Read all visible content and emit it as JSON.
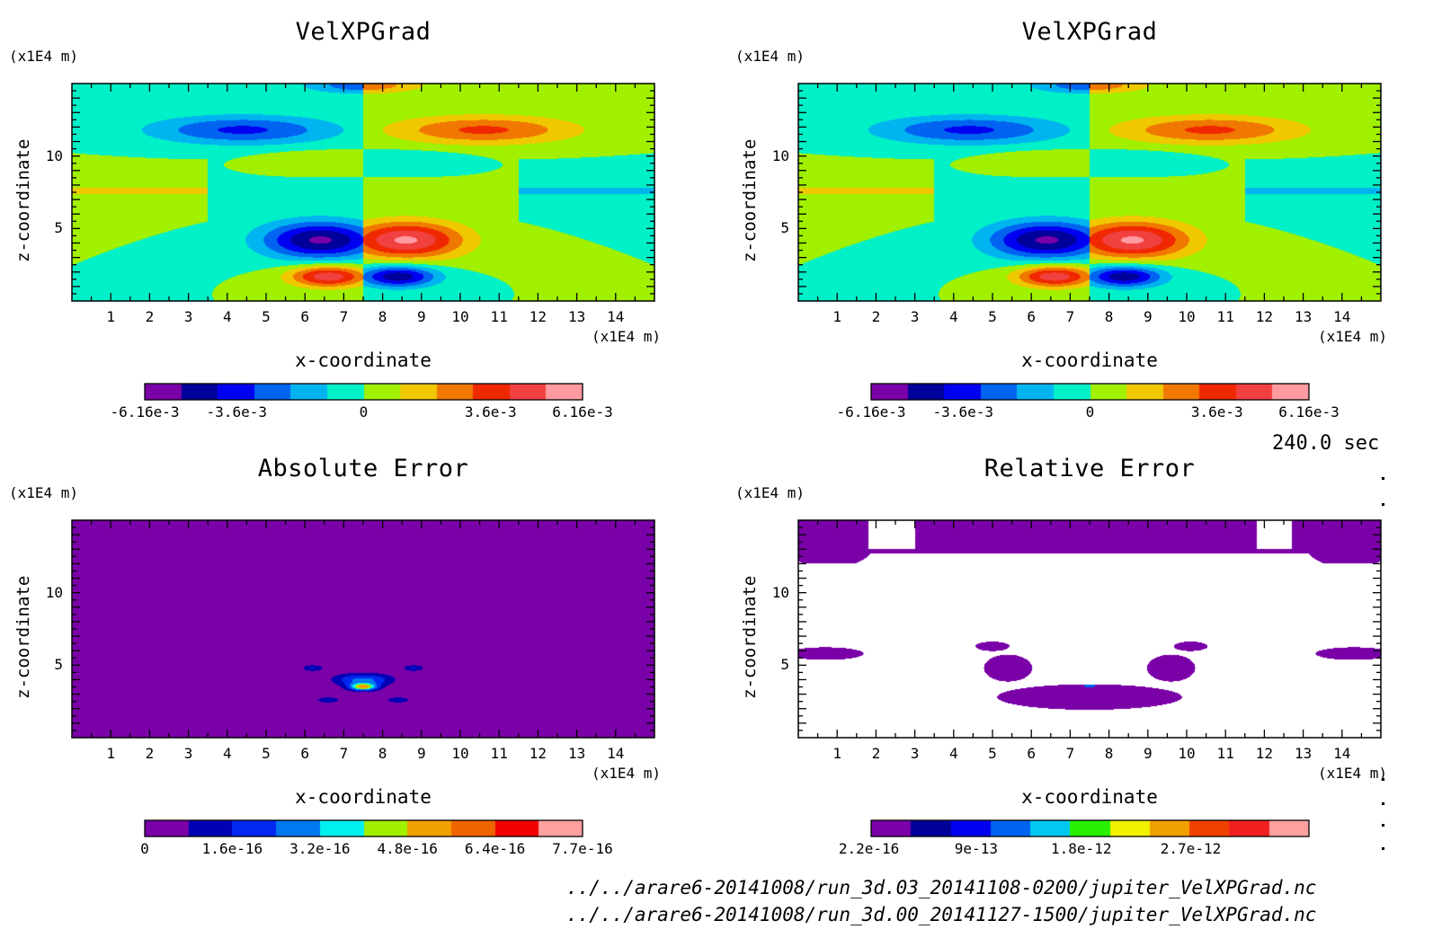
{
  "time_label": "240.0 sec",
  "file_paths": [
    "../../arare6-20141008/run_3d.03_20141108-0200/jupiter_VelXPGrad.nc",
    "../../arare6-20141008/run_3d.00_20141127-1500/jupiter_VelXPGrad.nc"
  ],
  "chart_data": [
    {
      "type": "heatmap",
      "title": "VelXPGrad",
      "xlabel": "x-coordinate",
      "ylabel": "z-coordinate",
      "x_unit": "(x1E4 m)",
      "y_unit": "(x1E4 m)",
      "xlim": [
        0,
        15
      ],
      "ylim": [
        0,
        15
      ],
      "x_ticks": [
        "1",
        "2",
        "3",
        "4",
        "5",
        "6",
        "7",
        "8",
        "9",
        "10",
        "11",
        "12",
        "13",
        "14"
      ],
      "y_ticks": [
        "5",
        "10"
      ],
      "colorbar_labels": [
        "-6.16e-3",
        "-3.6e-3",
        "0",
        "3.6e-3",
        "6.16e-3"
      ],
      "field": "antisymmetric_x",
      "colors": [
        "#7a00a8",
        "#00009a",
        "#0000f0",
        "#0064f0",
        "#00b4f0",
        "#00f0c8",
        "#a0f000",
        "#f0c800",
        "#f07800",
        "#f02800",
        "#f04040",
        "#ff9aa0"
      ]
    },
    {
      "type": "heatmap",
      "title": "VelXPGrad",
      "xlabel": "x-coordinate",
      "ylabel": "z-coordinate",
      "x_unit": "(x1E4 m)",
      "y_unit": "(x1E4 m)",
      "xlim": [
        0,
        15
      ],
      "ylim": [
        0,
        15
      ],
      "x_ticks": [
        "1",
        "2",
        "3",
        "4",
        "5",
        "6",
        "7",
        "8",
        "9",
        "10",
        "11",
        "12",
        "13",
        "14"
      ],
      "y_ticks": [
        "5",
        "10"
      ],
      "colorbar_labels": [
        "-6.16e-3",
        "-3.6e-3",
        "0",
        "3.6e-3",
        "6.16e-3"
      ],
      "field": "antisymmetric_x",
      "colors": [
        "#7a00a8",
        "#00009a",
        "#0000f0",
        "#0064f0",
        "#00b4f0",
        "#00f0c8",
        "#a0f000",
        "#f0c800",
        "#f07800",
        "#f02800",
        "#f04040",
        "#ff9aa0"
      ]
    },
    {
      "type": "heatmap",
      "title": "Absolute Error",
      "xlabel": "x-coordinate",
      "ylabel": "z-coordinate",
      "x_unit": "(x1E4 m)",
      "y_unit": "(x1E4 m)",
      "xlim": [
        0,
        15
      ],
      "ylim": [
        0,
        15
      ],
      "x_ticks": [
        "1",
        "2",
        "3",
        "4",
        "5",
        "6",
        "7",
        "8",
        "9",
        "10",
        "11",
        "12",
        "13",
        "14"
      ],
      "y_ticks": [
        "5",
        "10"
      ],
      "colorbar_labels": [
        "0",
        "1.6e-16",
        "3.2e-16",
        "4.8e-16",
        "6.4e-16",
        "7.7e-16"
      ],
      "field": "abs_error",
      "colors": [
        "#7a00a8",
        "#0000b4",
        "#0028f0",
        "#0078f0",
        "#00f0f0",
        "#a0f000",
        "#f0a000",
        "#f06400",
        "#f00000",
        "#ffa0a0"
      ]
    },
    {
      "type": "heatmap",
      "title": "Relative Error",
      "xlabel": "x-coordinate",
      "ylabel": "z-coordinate",
      "x_unit": "(x1E4 m)",
      "y_unit": "(x1E4 m)",
      "xlim": [
        0,
        15
      ],
      "ylim": [
        0,
        15
      ],
      "x_ticks": [
        "1",
        "2",
        "3",
        "4",
        "5",
        "6",
        "7",
        "8",
        "9",
        "10",
        "11",
        "12",
        "13",
        "14"
      ],
      "y_ticks": [
        "5",
        "10"
      ],
      "colorbar_labels": [
        "2.2e-16",
        "9e-13",
        "1.8e-12",
        "2.7e-12"
      ],
      "field": "rel_error",
      "colors": [
        "#7a00a8",
        "#00009a",
        "#0000f0",
        "#0064f0",
        "#00c8f0",
        "#28f000",
        "#f0f000",
        "#f0a000",
        "#f04000",
        "#f02020",
        "#ffa0a0"
      ]
    }
  ]
}
